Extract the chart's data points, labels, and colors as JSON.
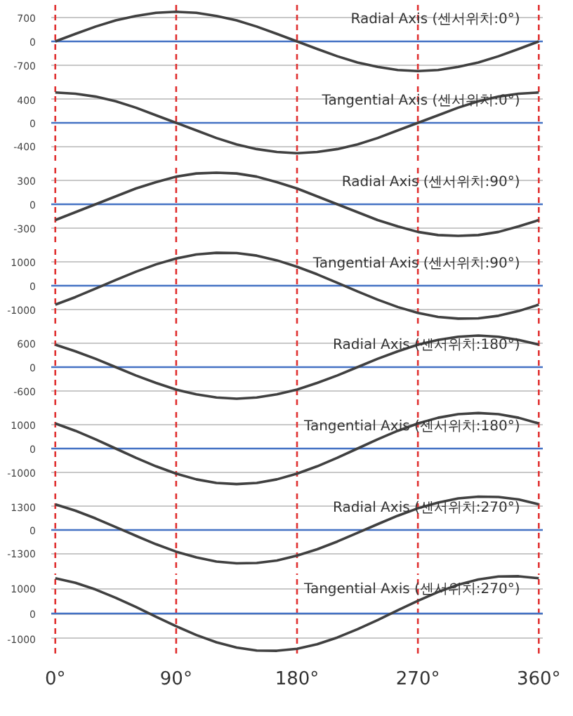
{
  "chart_data": [
    {
      "type": "line",
      "title": "Radial Axis (센서위치:0°)",
      "x": [
        0,
        15,
        30,
        45,
        60,
        75,
        90,
        105,
        120,
        135,
        150,
        165,
        180,
        195,
        210,
        225,
        240,
        255,
        270,
        285,
        300,
        315,
        330,
        345,
        360
      ],
      "series": [
        {
          "color": "#404040",
          "values": [
            0,
            220,
            430,
            610,
            740,
            830,
            860,
            830,
            740,
            610,
            430,
            220,
            0,
            -220,
            -430,
            -610,
            -740,
            -830,
            -860,
            -830,
            -740,
            -610,
            -430,
            -220,
            0
          ]
        }
      ],
      "xlim": [
        -3,
        363
      ],
      "ylim": [
        -1100,
        1100
      ],
      "yticks": [
        -700,
        0,
        700
      ],
      "tick_labels": "y",
      "grid": "y",
      "ref_lines": [
        {
          "axis": "x",
          "value": 0,
          "color": "#e03030",
          "line_style": "dashed"
        },
        {
          "axis": "x",
          "value": 90,
          "color": "#e03030",
          "line_style": "dashed"
        },
        {
          "axis": "x",
          "value": 180,
          "color": "#e03030",
          "line_style": "dashed"
        },
        {
          "axis": "x",
          "value": 270,
          "color": "#e03030",
          "line_style": "dashed"
        },
        {
          "axis": "x",
          "value": 360,
          "color": "#e03030",
          "line_style": "dashed"
        },
        {
          "axis": "y",
          "value": 0,
          "color": "#4472c4",
          "line_style": "solid"
        }
      ]
    },
    {
      "type": "line",
      "title": "Tangential Axis (센서위치:0°)",
      "x": [
        0,
        15,
        30,
        45,
        60,
        75,
        90,
        105,
        120,
        135,
        150,
        165,
        180,
        195,
        210,
        225,
        240,
        255,
        270,
        285,
        300,
        315,
        330,
        345,
        360
      ],
      "series": [
        {
          "color": "#404040",
          "values": [
            520,
            500,
            450,
            370,
            260,
            130,
            0,
            -130,
            -260,
            -370,
            -450,
            -500,
            -520,
            -500,
            -450,
            -370,
            -260,
            -130,
            0,
            130,
            260,
            370,
            450,
            500,
            520
          ]
        }
      ],
      "xlim": [
        -3,
        363
      ],
      "ylim": [
        -650,
        650
      ],
      "yticks": [
        -400,
        0,
        400
      ],
      "tick_labels": "y",
      "grid": "y",
      "ref_lines": [
        {
          "axis": "x",
          "value": 0,
          "color": "#e03030",
          "line_style": "dashed"
        },
        {
          "axis": "x",
          "value": 90,
          "color": "#e03030",
          "line_style": "dashed"
        },
        {
          "axis": "x",
          "value": 180,
          "color": "#e03030",
          "line_style": "dashed"
        },
        {
          "axis": "x",
          "value": 270,
          "color": "#e03030",
          "line_style": "dashed"
        },
        {
          "axis": "x",
          "value": 360,
          "color": "#e03030",
          "line_style": "dashed"
        },
        {
          "axis": "y",
          "value": 0,
          "color": "#4472c4",
          "line_style": "solid"
        }
      ]
    },
    {
      "type": "line",
      "title": "Radial Axis (센서위치:90°)",
      "x": [
        0,
        15,
        30,
        45,
        60,
        75,
        90,
        105,
        120,
        135,
        150,
        165,
        180,
        195,
        210,
        225,
        240,
        255,
        270,
        285,
        300,
        315,
        330,
        345,
        360
      ],
      "series": [
        {
          "color": "#404040",
          "values": [
            -200,
            -100,
            0,
            100,
            200,
            280,
            350,
            390,
            400,
            390,
            350,
            280,
            200,
            100,
            0,
            -100,
            -200,
            -280,
            -350,
            -390,
            -400,
            -390,
            -350,
            -280,
            -200
          ]
        }
      ],
      "xlim": [
        -3,
        363
      ],
      "ylim": [
        -480,
        480
      ],
      "yticks": [
        -300,
        0,
        300
      ],
      "tick_labels": "y",
      "grid": "y",
      "ref_lines": [
        {
          "axis": "x",
          "value": 0,
          "color": "#e03030",
          "line_style": "dashed"
        },
        {
          "axis": "x",
          "value": 90,
          "color": "#e03030",
          "line_style": "dashed"
        },
        {
          "axis": "x",
          "value": 180,
          "color": "#e03030",
          "line_style": "dashed"
        },
        {
          "axis": "x",
          "value": 270,
          "color": "#e03030",
          "line_style": "dashed"
        },
        {
          "axis": "x",
          "value": 360,
          "color": "#e03030",
          "line_style": "dashed"
        },
        {
          "axis": "y",
          "value": 0,
          "color": "#4472c4",
          "line_style": "solid"
        }
      ]
    },
    {
      "type": "line",
      "title": "Tangential Axis (센서위치:90°)",
      "x": [
        0,
        15,
        30,
        45,
        60,
        75,
        90,
        105,
        120,
        135,
        150,
        165,
        180,
        195,
        210,
        225,
        240,
        255,
        270,
        285,
        300,
        315,
        330,
        345,
        360
      ],
      "series": [
        {
          "color": "#404040",
          "values": [
            -800,
            -480,
            -120,
            240,
            590,
            900,
            1150,
            1320,
            1390,
            1380,
            1270,
            1070,
            800,
            480,
            120,
            -240,
            -590,
            -900,
            -1150,
            -1320,
            -1390,
            -1380,
            -1270,
            -1070,
            -800
          ]
        }
      ],
      "xlim": [
        -3,
        363
      ],
      "ylim": [
        -1600,
        1600
      ],
      "yticks": [
        -1000,
        0,
        1000
      ],
      "tick_labels": "y",
      "grid": "y",
      "ref_lines": [
        {
          "axis": "x",
          "value": 0,
          "color": "#e03030",
          "line_style": "dashed"
        },
        {
          "axis": "x",
          "value": 90,
          "color": "#e03030",
          "line_style": "dashed"
        },
        {
          "axis": "x",
          "value": 180,
          "color": "#e03030",
          "line_style": "dashed"
        },
        {
          "axis": "x",
          "value": 270,
          "color": "#e03030",
          "line_style": "dashed"
        },
        {
          "axis": "x",
          "value": 360,
          "color": "#e03030",
          "line_style": "dashed"
        },
        {
          "axis": "y",
          "value": 0,
          "color": "#4472c4",
          "line_style": "solid"
        }
      ]
    },
    {
      "type": "line",
      "title": "Radial Axis (센서위치:180°)",
      "x": [
        0,
        15,
        30,
        45,
        60,
        75,
        90,
        105,
        120,
        135,
        150,
        165,
        180,
        195,
        210,
        225,
        240,
        255,
        270,
        285,
        300,
        315,
        330,
        345,
        360
      ],
      "series": [
        {
          "color": "#404040",
          "values": [
            570,
            400,
            210,
            0,
            -210,
            -400,
            -570,
            -690,
            -770,
            -800,
            -770,
            -690,
            -570,
            -400,
            -210,
            0,
            210,
            400,
            570,
            690,
            770,
            800,
            770,
            690,
            570
          ]
        }
      ],
      "xlim": [
        -3,
        363
      ],
      "ylim": [
        -960,
        960
      ],
      "yticks": [
        -600,
        0,
        600
      ],
      "tick_labels": "y",
      "grid": "y",
      "ref_lines": [
        {
          "axis": "x",
          "value": 0,
          "color": "#e03030",
          "line_style": "dashed"
        },
        {
          "axis": "x",
          "value": 90,
          "color": "#e03030",
          "line_style": "dashed"
        },
        {
          "axis": "x",
          "value": 180,
          "color": "#e03030",
          "line_style": "dashed"
        },
        {
          "axis": "x",
          "value": 270,
          "color": "#e03030",
          "line_style": "dashed"
        },
        {
          "axis": "x",
          "value": 360,
          "color": "#e03030",
          "line_style": "dashed"
        },
        {
          "axis": "y",
          "value": 0,
          "color": "#4472c4",
          "line_style": "solid"
        }
      ]
    },
    {
      "type": "line",
      "title": "Tangential Axis (센서위치:180°)",
      "x": [
        0,
        15,
        30,
        45,
        60,
        75,
        90,
        105,
        120,
        135,
        150,
        165,
        180,
        195,
        210,
        225,
        240,
        255,
        270,
        285,
        300,
        315,
        330,
        345,
        360
      ],
      "series": [
        {
          "color": "#404040",
          "values": [
            1060,
            750,
            390,
            0,
            -390,
            -750,
            -1060,
            -1300,
            -1450,
            -1500,
            -1450,
            -1300,
            -1060,
            -750,
            -390,
            0,
            390,
            750,
            1060,
            1300,
            1450,
            1500,
            1450,
            1300,
            1060
          ]
        }
      ],
      "xlim": [
        -3,
        363
      ],
      "ylim": [
        -1600,
        1600
      ],
      "yticks": [
        -1000,
        0,
        1000
      ],
      "tick_labels": "y",
      "grid": "y",
      "ref_lines": [
        {
          "axis": "x",
          "value": 0,
          "color": "#e03030",
          "line_style": "dashed"
        },
        {
          "axis": "x",
          "value": 90,
          "color": "#e03030",
          "line_style": "dashed"
        },
        {
          "axis": "x",
          "value": 180,
          "color": "#e03030",
          "line_style": "dashed"
        },
        {
          "axis": "x",
          "value": 270,
          "color": "#e03030",
          "line_style": "dashed"
        },
        {
          "axis": "x",
          "value": 360,
          "color": "#e03030",
          "line_style": "dashed"
        },
        {
          "axis": "y",
          "value": 0,
          "color": "#4472c4",
          "line_style": "solid"
        }
      ]
    },
    {
      "type": "line",
      "title": "Radial Axis (센서위치:270°)",
      "x": [
        0,
        15,
        30,
        45,
        60,
        75,
        90,
        105,
        120,
        135,
        150,
        165,
        180,
        195,
        210,
        225,
        240,
        255,
        270,
        285,
        300,
        315,
        330,
        345,
        360
      ],
      "series": [
        {
          "color": "#404040",
          "values": [
            1420,
            1070,
            640,
            160,
            -320,
            -790,
            -1200,
            -1520,
            -1750,
            -1850,
            -1830,
            -1690,
            -1420,
            -1070,
            -640,
            -160,
            320,
            790,
            1200,
            1520,
            1750,
            1850,
            1830,
            1690,
            1420
          ]
        }
      ],
      "xlim": [
        -3,
        363
      ],
      "ylim": [
        -2100,
        2100
      ],
      "yticks": [
        -1300,
        0,
        1300
      ],
      "tick_labels": "y",
      "grid": "y",
      "ref_lines": [
        {
          "axis": "x",
          "value": 0,
          "color": "#e03030",
          "line_style": "dashed"
        },
        {
          "axis": "x",
          "value": 90,
          "color": "#e03030",
          "line_style": "dashed"
        },
        {
          "axis": "x",
          "value": 180,
          "color": "#e03030",
          "line_style": "dashed"
        },
        {
          "axis": "x",
          "value": 270,
          "color": "#e03030",
          "line_style": "dashed"
        },
        {
          "axis": "x",
          "value": 360,
          "color": "#e03030",
          "line_style": "dashed"
        },
        {
          "axis": "y",
          "value": 0,
          "color": "#4472c4",
          "line_style": "solid"
        }
      ]
    },
    {
      "type": "line",
      "title": "Tangential Axis (센서위치:270°)",
      "x": [
        0,
        15,
        30,
        45,
        60,
        75,
        90,
        105,
        120,
        135,
        150,
        165,
        180,
        195,
        210,
        225,
        240,
        255,
        270,
        285,
        300,
        315,
        330,
        345,
        360
      ],
      "series": [
        {
          "color": "#404040",
          "values": [
            1410,
            1230,
            960,
            630,
            260,
            -130,
            -510,
            -860,
            -1150,
            -1360,
            -1480,
            -1490,
            -1410,
            -1230,
            -960,
            -630,
            -260,
            130,
            510,
            860,
            1150,
            1360,
            1480,
            1490,
            1410
          ]
        }
      ],
      "xlim": [
        -3,
        363
      ],
      "xticks": [
        {
          "value": 0,
          "label": "0°"
        },
        {
          "value": 90,
          "label": "90°"
        },
        {
          "value": 180,
          "label": "180°"
        },
        {
          "value": 270,
          "label": "270°"
        },
        {
          "value": 360,
          "label": "360°"
        }
      ],
      "ylim": [
        -1600,
        1600
      ],
      "yticks": [
        -1000,
        0,
        1000
      ],
      "grid": "y",
      "ref_lines": [
        {
          "axis": "x",
          "value": 0,
          "color": "#e03030",
          "line_style": "dashed"
        },
        {
          "axis": "x",
          "value": 90,
          "color": "#e03030",
          "line_style": "dashed"
        },
        {
          "axis": "x",
          "value": 180,
          "color": "#e03030",
          "line_style": "dashed"
        },
        {
          "axis": "x",
          "value": 270,
          "color": "#e03030",
          "line_style": "dashed"
        },
        {
          "axis": "x",
          "value": 360,
          "color": "#e03030",
          "line_style": "dashed"
        },
        {
          "axis": "y",
          "value": 0,
          "color": "#4472c4",
          "line_style": "solid"
        }
      ]
    }
  ]
}
